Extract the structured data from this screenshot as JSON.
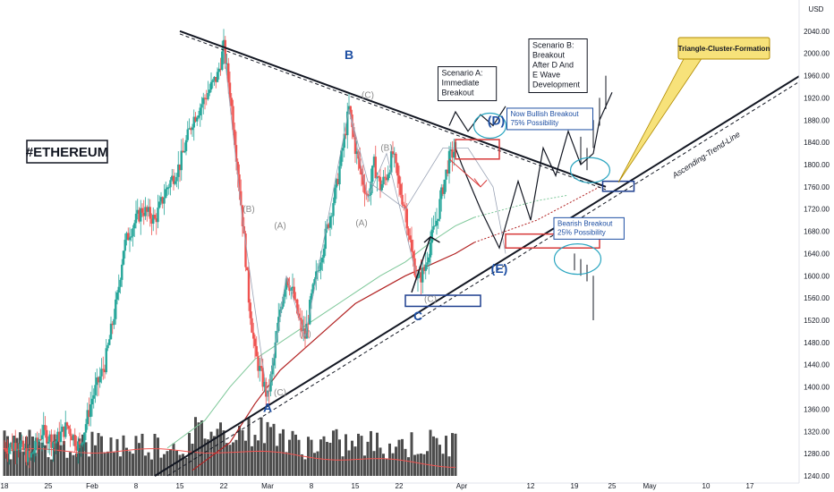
{
  "chart_data": {
    "type": "candlestick",
    "title": "#ETHEREUM",
    "currency": "USD",
    "y_axis": {
      "min": 1240,
      "max": 2080,
      "side": "right",
      "ticks": [
        2040,
        2000,
        1960,
        1920,
        1880,
        1840,
        1800,
        1760,
        1720,
        1680,
        1640,
        1600,
        1560,
        1520,
        1480,
        1440,
        1400,
        1360,
        1320,
        1280,
        1240
      ]
    },
    "x_axis": {
      "labels": [
        {
          "text": "18",
          "day": 0
        },
        {
          "text": "25",
          "day": 7
        },
        {
          "text": "Feb",
          "day": 14
        },
        {
          "text": "8",
          "day": 21
        },
        {
          "text": "15",
          "day": 28
        },
        {
          "text": "22",
          "day": 35
        },
        {
          "text": "Mar",
          "day": 42
        },
        {
          "text": "8",
          "day": 49
        },
        {
          "text": "15",
          "day": 56
        },
        {
          "text": "22",
          "day": 63
        },
        {
          "text": "Apr",
          "day": 73
        },
        {
          "text": "12",
          "day": 84
        },
        {
          "text": "19",
          "day": 91
        },
        {
          "text": "25",
          "day": 97
        },
        {
          "text": "May",
          "day": 103
        },
        {
          "text": "10",
          "day": 112
        },
        {
          "text": "17",
          "day": 119
        }
      ]
    },
    "colors": {
      "up": "#26a69a",
      "down": "#ef5350",
      "trendline": "#131722",
      "ma_green": "#7fc89a",
      "ma_red": "#b22222",
      "wave_blue": "#1e4fa3",
      "box_red": "#d73a3a",
      "box_blue": "#1e3f8f",
      "ellipse": "#2aa5c0",
      "callout": "#f7e27a"
    },
    "annotations": {
      "wave_labels": [
        {
          "text": "B",
          "style": "blue",
          "day": 55,
          "price": 1990
        },
        {
          "text": "(C)",
          "style": "grey",
          "day": 58,
          "price": 1920
        },
        {
          "text": "(B)",
          "style": "grey",
          "day": 39,
          "price": 1715
        },
        {
          "text": "(A)",
          "style": "grey",
          "day": 44,
          "price": 1685
        },
        {
          "text": "(A)",
          "style": "grey",
          "day": 57,
          "price": 1690
        },
        {
          "text": "(B)",
          "style": "grey",
          "day": 61,
          "price": 1825
        },
        {
          "text": "(B)",
          "style": "grey",
          "day": 48,
          "price": 1490
        },
        {
          "text": "(C)",
          "style": "grey",
          "day": 44,
          "price": 1385
        },
        {
          "text": "(C)",
          "style": "grey",
          "day": 68,
          "price": 1553
        },
        {
          "text": "A",
          "style": "blue",
          "day": 42,
          "price": 1355
        },
        {
          "text": "C",
          "style": "blue",
          "day": 66,
          "price": 1520
        },
        {
          "text": "(D)",
          "style": "blue",
          "day": 78.5,
          "price": 1872
        },
        {
          "text": "(E)",
          "style": "blue",
          "day": 79,
          "price": 1605
        }
      ],
      "notes": [
        {
          "lines": [
            "Scenario A:",
            "Immediate",
            "Breakout"
          ],
          "day": 69.5,
          "price": 1960
        },
        {
          "lines": [
            "Scenario B:",
            "Breakout",
            "After D And",
            "E Wave",
            "Development"
          ],
          "day": 84,
          "price": 2010
        }
      ],
      "blue_notes": [
        {
          "lines": [
            "Now Bullish Breakout",
            "75% Possibility"
          ],
          "day": 80.5,
          "price": 1887
        },
        {
          "lines": [
            "Bearish Breakout",
            "25% Possibility"
          ],
          "day": 88,
          "price": 1690
        }
      ],
      "trend_label": "Ascending-Trend-Line",
      "callout_label": "Triangle-Cluster-Formation"
    }
  }
}
